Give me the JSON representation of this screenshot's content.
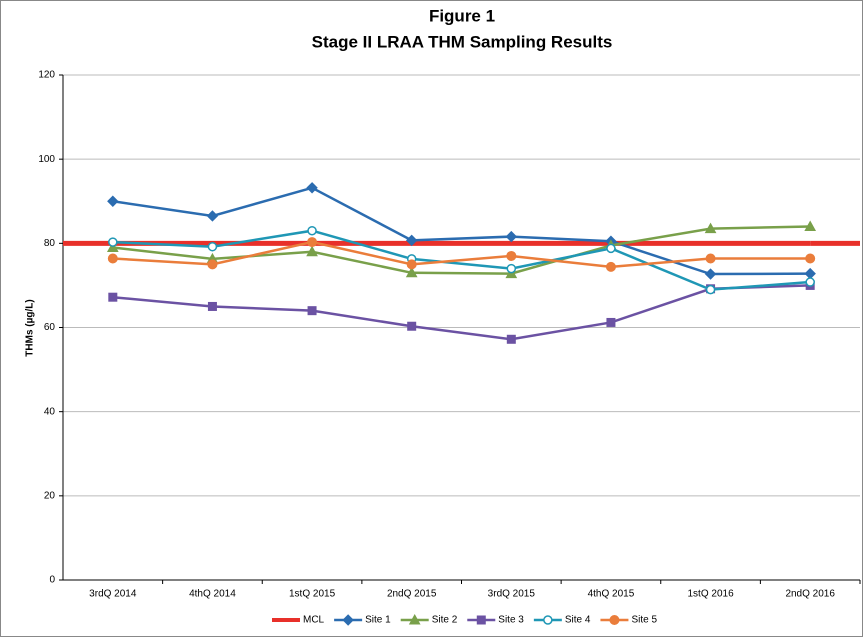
{
  "chart_data": {
    "type": "line",
    "title": "Figure 1",
    "subtitle": "Stage II LRAA THM Sampling Results",
    "y_label": "THMs (µg/L)",
    "categories": [
      "3rdQ 2014",
      "4thQ 2014",
      "1stQ 2015",
      "2ndQ 2015",
      "3rdQ 2015",
      "4thQ 2015",
      "1stQ 2016",
      "2ndQ 2016"
    ],
    "ylim": [
      0,
      120
    ],
    "yticks": [
      0,
      20,
      40,
      60,
      80,
      100,
      120
    ],
    "grid": true,
    "legend": "bottom",
    "series": [
      {
        "name": "MCL",
        "color": "#e8302a",
        "marker": "none",
        "values": [
          80,
          80,
          80,
          80,
          80,
          80,
          80,
          80
        ]
      },
      {
        "name": "Site 1",
        "color": "#2b6cb0",
        "marker": "diamond",
        "values": [
          90,
          86.5,
          93.2,
          80.7,
          81.6,
          80.5,
          72.7,
          72.8
        ]
      },
      {
        "name": "Site 2",
        "color": "#79a04a",
        "marker": "triangle",
        "values": [
          79,
          76.3,
          78,
          73,
          72.8,
          79.5,
          83.5,
          84
        ]
      },
      {
        "name": "Site 3",
        "color": "#6b52a3",
        "marker": "square",
        "values": [
          67.2,
          65,
          64,
          60.3,
          57.2,
          61.2,
          69.2,
          70
        ]
      },
      {
        "name": "Site 4",
        "color": "#1f97b5",
        "marker": "open-circle",
        "values": [
          80.3,
          79.2,
          83,
          76.3,
          74,
          78.8,
          69,
          70.8
        ]
      },
      {
        "name": "Site 5",
        "color": "#ea7d3b",
        "marker": "circle",
        "values": [
          76.4,
          75,
          80.3,
          75,
          77,
          74.4,
          76.4,
          76.4
        ]
      }
    ]
  }
}
